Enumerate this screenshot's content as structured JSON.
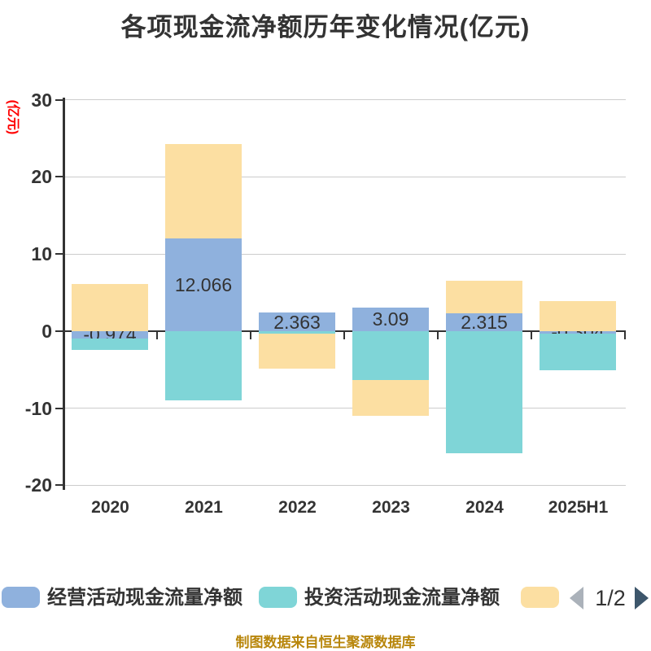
{
  "title": "各项现金流净额历年变化情况(亿元)",
  "y_axis_name": "(亿元)",
  "footer": "制图数据来自恒生聚源数据库",
  "chart_data": {
    "type": "bar",
    "stacked": true,
    "title": "各项现金流净额历年变化情况(亿元)",
    "unit": "亿元",
    "categories": [
      "2020",
      "2021",
      "2022",
      "2023",
      "2024",
      "2025H1"
    ],
    "y_ticks": [
      30,
      20,
      10,
      0,
      -10,
      -20
    ],
    "ylim": [
      -20,
      30
    ],
    "grid": true,
    "legend_position": "bottom",
    "series": [
      {
        "name": "经营活动现金流量净额",
        "color": "#8FB1DD",
        "values": [
          -0.974,
          12.066,
          2.363,
          3.09,
          2.315,
          -0.304
        ],
        "labels": [
          "-0.974",
          "12.066",
          "2.363",
          "3.09",
          "2.315",
          "-0.304"
        ]
      },
      {
        "name": "投资活动现金流量净额",
        "color": "#7FD5D7",
        "values": [
          -1.46,
          -9.03,
          -0.35,
          -6.32,
          -15.84,
          -4.76
        ]
      },
      {
        "name": "",
        "color": "#FCDFA2",
        "values": [
          6.14,
          12.24,
          -4.55,
          -4.66,
          4.17,
          3.84
        ]
      }
    ]
  },
  "legend": {
    "items": [
      {
        "label": "经营活动现金流量净额",
        "color": "#8FB1DD"
      },
      {
        "label": "投资活动现金流量净额",
        "color": "#7FD5D7"
      },
      {
        "label": "",
        "color": "#FCDFA2"
      }
    ],
    "pagination": {
      "text": "1/2"
    }
  },
  "colors": {
    "title": "#333333",
    "axis": "#333333",
    "gridline": "#cccccc",
    "y_axis_name": "#ff0000",
    "footer": "#B8860B",
    "pagination_prev": "#ABB2BA",
    "pagination_next": "#3D566B"
  }
}
